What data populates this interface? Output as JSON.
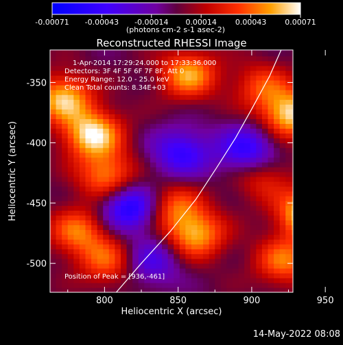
{
  "chart_data": {
    "type": "heatmap",
    "title": "Reconstructed RHESSI Image",
    "xlabel": "Heliocentric X (arcsec)",
    "ylabel": "Heliocentric Y (arcsec)",
    "xlim": [
      763,
      928
    ],
    "ylim": [
      -524,
      -323
    ],
    "x_ticks": [
      "800",
      "850",
      "900",
      "950"
    ],
    "y_ticks": [
      "-350",
      "-400",
      "-450",
      "-500"
    ],
    "colorbar": {
      "range": [
        -0.00071,
        0.00071
      ],
      "tick_labels": [
        "-0.00071",
        "-0.00043",
        "-0.00014",
        "0.00014",
        "0.00043",
        "0.00071"
      ],
      "units_label": "(photons cm-2 s-1 asec-2)"
    },
    "annotations": [
      "1-Apr-2014 17:29:24.000 to 17:33:36.000",
      "Detectors: 3F 4F 5F 6F 7F 8F, Att 0",
      "Energy Range: 12.0 - 25.0 keV",
      "Clean     Total counts: 8.34E+03"
    ],
    "peak_label": "Position of Peak = [936,-461]",
    "peak": [
      936,
      -461
    ],
    "limb_curve": [
      [
        808,
        -524
      ],
      [
        825,
        -500
      ],
      [
        845,
        -473
      ],
      [
        862,
        -447
      ],
      [
        876,
        -421
      ],
      [
        889,
        -396
      ],
      [
        900,
        -372
      ],
      [
        912,
        -345
      ],
      [
        920,
        -323
      ]
    ],
    "emission_blobs": [
      {
        "x": 770,
        "y": -365,
        "peak": 0.0006
      },
      {
        "x": 790,
        "y": -395,
        "peak": 0.00068
      },
      {
        "x": 800,
        "y": -430,
        "peak": 0.0005
      },
      {
        "x": 780,
        "y": -475,
        "peak": 0.00045
      },
      {
        "x": 800,
        "y": -500,
        "peak": 0.0004
      },
      {
        "x": 860,
        "y": -478,
        "peak": 0.00055
      },
      {
        "x": 845,
        "y": -455,
        "peak": 0.0004
      },
      {
        "x": 855,
        "y": -345,
        "peak": 0.00055
      },
      {
        "x": 905,
        "y": -355,
        "peak": 0.00035
      },
      {
        "x": 925,
        "y": -378,
        "peak": 0.00065
      },
      {
        "x": 936,
        "y": -461,
        "peak": 0.00071
      },
      {
        "x": 920,
        "y": -500,
        "peak": 0.00045
      },
      {
        "x": 905,
        "y": -430,
        "peak": 0.0003
      }
    ],
    "negative_blobs": [
      {
        "x": 815,
        "y": -455,
        "peak": -0.0006
      },
      {
        "x": 850,
        "y": -410,
        "peak": -0.00045
      },
      {
        "x": 895,
        "y": -408,
        "peak": -0.0005
      },
      {
        "x": 830,
        "y": -500,
        "peak": -0.00035
      }
    ]
  },
  "footer": {
    "date_stamp": "14-May-2022 08:08"
  }
}
